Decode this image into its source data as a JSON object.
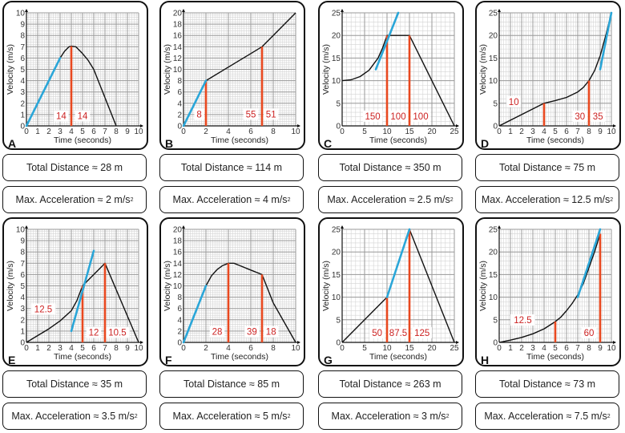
{
  "colors": {
    "curve": "#111111",
    "tangent": "#2aa6d8",
    "area_line": "#e8481f",
    "area_label": "#cc2222",
    "grid_major": "#9a9a9a",
    "grid_minor": "#d4d4d4"
  },
  "common": {
    "xlabel": "Time (seconds)",
    "ylabel": "Velocity (m/s)"
  },
  "chart_data": [
    {
      "id": "A",
      "type": "line",
      "xlabel": "Time (seconds)",
      "ylabel": "Velocity (m/s)",
      "xlim": [
        0,
        10
      ],
      "ylim": [
        0,
        10
      ],
      "xticks": [
        0,
        1,
        2,
        3,
        4,
        5,
        6,
        7,
        8,
        9,
        10
      ],
      "yticks": [
        0,
        1,
        2,
        3,
        4,
        5,
        6,
        7,
        8,
        9,
        10
      ],
      "xminor": 5,
      "yminor": 5,
      "curve": [
        [
          0,
          0
        ],
        [
          3,
          6
        ],
        [
          3.4,
          6.6
        ],
        [
          3.8,
          7
        ],
        [
          4,
          7.05
        ],
        [
          4.4,
          7
        ],
        [
          5,
          6.4
        ],
        [
          5.5,
          5.8
        ],
        [
          6,
          5
        ],
        [
          7,
          2.5
        ],
        [
          8,
          0
        ]
      ],
      "tangent": [
        [
          0,
          0
        ],
        [
          3,
          6
        ]
      ],
      "vlines": [
        4
      ],
      "area_labels": [
        {
          "text": "14",
          "x": 3.1,
          "y": 0.75
        },
        {
          "text": "14",
          "x": 5,
          "y": 0.75
        }
      ],
      "total_distance": "Total Distance ≈ 28 m",
      "max_accel_prefix": "Max. Acceleration ≈ 2 m/s",
      "max_accel_sup": "2"
    },
    {
      "id": "B",
      "type": "line",
      "xlabel": "Time (seconds)",
      "ylabel": "Velocity (m/s)",
      "xlim": [
        0,
        10
      ],
      "ylim": [
        0,
        20
      ],
      "xticks": [
        0,
        2,
        4,
        6,
        8,
        10
      ],
      "yticks": [
        0,
        2,
        4,
        6,
        8,
        10,
        12,
        14,
        16,
        18,
        20
      ],
      "xminor": 10,
      "yminor": 5,
      "curve": [
        [
          0,
          0
        ],
        [
          2,
          8
        ],
        [
          4,
          10.4
        ],
        [
          6,
          12.8
        ],
        [
          7,
          14
        ],
        [
          8,
          16
        ],
        [
          10,
          20
        ]
      ],
      "tangent": [
        [
          0,
          0
        ],
        [
          2,
          8
        ]
      ],
      "vlines": [
        2,
        7
      ],
      "area_labels": [
        {
          "text": "8",
          "x": 1.4,
          "y": 1.8
        },
        {
          "text": "55",
          "x": 6.0,
          "y": 1.8
        },
        {
          "text": "51",
          "x": 7.8,
          "y": 1.8
        }
      ],
      "total_distance": "Total Distance ≈ 114 m",
      "max_accel_prefix": "Max. Acceleration ≈ 4 m/s",
      "max_accel_sup": "2"
    },
    {
      "id": "C",
      "type": "line",
      "xlabel": "Time (seconds)",
      "ylabel": "Velocity (m/s)",
      "xlim": [
        0,
        25
      ],
      "ylim": [
        0,
        25
      ],
      "xticks": [
        0,
        5,
        10,
        15,
        20,
        25
      ],
      "yticks": [
        0,
        5,
        10,
        15,
        20,
        25
      ],
      "xminor": 5,
      "yminor": 5,
      "curve": [
        [
          0,
          10
        ],
        [
          2,
          10.2
        ],
        [
          4,
          10.9
        ],
        [
          6,
          12.3
        ],
        [
          8,
          15
        ],
        [
          9,
          17.2
        ],
        [
          10,
          20
        ],
        [
          15,
          20
        ],
        [
          25,
          0
        ]
      ],
      "tangent": [
        [
          7.5,
          12.5
        ],
        [
          12.5,
          25
        ]
      ],
      "vlines": [
        10,
        15
      ],
      "area_labels": [
        {
          "text": "150",
          "x": 6.8,
          "y": 1.8
        },
        {
          "text": "100",
          "x": 12.5,
          "y": 1.8
        },
        {
          "text": "100",
          "x": 17.5,
          "y": 1.8
        }
      ],
      "total_distance": "Total Distance ≈ 350 m",
      "max_accel_prefix": "Max. Acceleration ≈ 2.5 m/s",
      "max_accel_sup": "2"
    },
    {
      "id": "D",
      "type": "line",
      "xlabel": "Time (seconds)",
      "ylabel": "Velocity (m/s)",
      "xlim": [
        0,
        10
      ],
      "ylim": [
        0,
        25
      ],
      "xticks": [
        0,
        1,
        2,
        3,
        4,
        5,
        6,
        7,
        8,
        9,
        10
      ],
      "yticks": [
        0,
        5,
        10,
        15,
        20,
        25
      ],
      "xminor": 5,
      "yminor": 5,
      "curve": [
        [
          0,
          0
        ],
        [
          2,
          2.5
        ],
        [
          4,
          5
        ],
        [
          5,
          5.6
        ],
        [
          6,
          6.3
        ],
        [
          7,
          7.5
        ],
        [
          7.5,
          8.5
        ],
        [
          8,
          10
        ],
        [
          8.5,
          12.2
        ],
        [
          9,
          15.5
        ],
        [
          9.5,
          20
        ],
        [
          10,
          25
        ]
      ],
      "tangent": [
        [
          9,
          12.5
        ],
        [
          10,
          25
        ]
      ],
      "vlines": [
        4,
        8
      ],
      "area_labels": [
        {
          "text": "10",
          "x": 1.3,
          "y": 5
        },
        {
          "text": "30",
          "x": 7.2,
          "y": 1.8
        },
        {
          "text": "35",
          "x": 8.8,
          "y": 1.8
        }
      ],
      "total_distance": "Total Distance ≈ 75 m",
      "max_accel_prefix": "Max. Acceleration ≈ 12.5 m/s",
      "max_accel_sup": "2"
    },
    {
      "id": "E",
      "type": "line",
      "xlabel": "Time (seconds)",
      "ylabel": "Velocity (m/s)",
      "xlim": [
        0,
        10
      ],
      "ylim": [
        0,
        10
      ],
      "xticks": [
        0,
        1,
        2,
        3,
        4,
        5,
        6,
        7,
        8,
        9,
        10
      ],
      "yticks": [
        0,
        1,
        2,
        3,
        4,
        5,
        6,
        7,
        8,
        9,
        10
      ],
      "xminor": 5,
      "yminor": 5,
      "curve": [
        [
          0,
          0
        ],
        [
          1,
          0.6
        ],
        [
          2,
          1.2
        ],
        [
          3,
          1.9
        ],
        [
          4,
          2.8
        ],
        [
          4.5,
          3.7
        ],
        [
          5,
          5
        ],
        [
          6,
          6
        ],
        [
          7,
          7
        ],
        [
          10,
          0
        ]
      ],
      "tangent": [
        [
          4,
          1
        ],
        [
          6,
          8.1
        ]
      ],
      "vlines": [
        5,
        7
      ],
      "area_labels": [
        {
          "text": "12.5",
          "x": 1.5,
          "y": 2.8
        },
        {
          "text": "12",
          "x": 6,
          "y": 0.75
        },
        {
          "text": "10.5",
          "x": 8.1,
          "y": 0.75
        }
      ],
      "total_distance": "Total Distance ≈ 35 m",
      "max_accel_prefix": "Max. Acceleration ≈ 3.5 m/s",
      "max_accel_sup": "2"
    },
    {
      "id": "F",
      "type": "line",
      "xlabel": "Time (seconds)",
      "ylabel": "Velocity (m/s)",
      "xlim": [
        0,
        10
      ],
      "ylim": [
        0,
        20
      ],
      "xticks": [
        0,
        2,
        4,
        6,
        8,
        10
      ],
      "yticks": [
        0,
        2,
        4,
        6,
        8,
        10,
        12,
        14,
        16,
        18,
        20
      ],
      "xminor": 10,
      "yminor": 5,
      "curve": [
        [
          0,
          0
        ],
        [
          2,
          10
        ],
        [
          2.5,
          11.8
        ],
        [
          3,
          12.9
        ],
        [
          3.5,
          13.6
        ],
        [
          4,
          14
        ],
        [
          4.5,
          14
        ],
        [
          5,
          13.6
        ],
        [
          6,
          12.8
        ],
        [
          7,
          12
        ],
        [
          8,
          7
        ],
        [
          10,
          0
        ]
      ],
      "tangent": [
        [
          0,
          0
        ],
        [
          2,
          10
        ]
      ],
      "vlines": [
        4,
        7
      ],
      "area_labels": [
        {
          "text": "28",
          "x": 3,
          "y": 1.6
        },
        {
          "text": "39",
          "x": 6.1,
          "y": 1.6
        },
        {
          "text": "18",
          "x": 7.8,
          "y": 1.6
        }
      ],
      "total_distance": "Total Distance ≈ 85 m",
      "max_accel_prefix": "Max. Acceleration ≈ 5 m/s",
      "max_accel_sup": "2"
    },
    {
      "id": "G",
      "type": "line",
      "xlabel": "Time (seconds)",
      "ylabel": "Velocity (m/s)",
      "xlim": [
        0,
        25
      ],
      "ylim": [
        0,
        25
      ],
      "xticks": [
        0,
        5,
        10,
        15,
        20,
        25
      ],
      "yticks": [
        0,
        5,
        10,
        15,
        20,
        25
      ],
      "xminor": 5,
      "yminor": 5,
      "curve": [
        [
          0,
          0
        ],
        [
          10,
          10
        ],
        [
          15,
          25
        ],
        [
          25,
          0
        ]
      ],
      "tangent": [
        [
          10,
          10
        ],
        [
          15,
          25
        ]
      ],
      "vlines": [
        10,
        15
      ],
      "area_labels": [
        {
          "text": "50",
          "x": 7.8,
          "y": 1.8
        },
        {
          "text": "87.5",
          "x": 12.5,
          "y": 1.8
        },
        {
          "text": "125",
          "x": 17.8,
          "y": 1.8
        }
      ],
      "total_distance": "Total Distance ≈ 263 m",
      "max_accel_prefix": "Max. Acceleration ≈ 3 m/s",
      "max_accel_sup": "2"
    },
    {
      "id": "H",
      "type": "line",
      "xlabel": "Time (seconds)",
      "ylabel": "Velocity (m/s)",
      "xlim": [
        0,
        10
      ],
      "ylim": [
        0,
        25
      ],
      "xticks": [
        0,
        1,
        2,
        3,
        4,
        5,
        6,
        7,
        8,
        9,
        10
      ],
      "yticks": [
        0,
        5,
        10,
        15,
        20,
        25
      ],
      "xminor": 5,
      "yminor": 5,
      "curve": [
        [
          0,
          0
        ],
        [
          1,
          0.5
        ],
        [
          2,
          1.1
        ],
        [
          3,
          1.9
        ],
        [
          4,
          3
        ],
        [
          5,
          4.6
        ],
        [
          5.5,
          5.6
        ],
        [
          6,
          7
        ],
        [
          6.5,
          8.6
        ],
        [
          7,
          10.5
        ],
        [
          7.5,
          13
        ],
        [
          8,
          16.5
        ],
        [
          8.5,
          20
        ],
        [
          9,
          24
        ]
      ],
      "tangent": [
        [
          7,
          10
        ],
        [
          9,
          25
        ]
      ],
      "vlines": [
        5,
        9
      ],
      "area_labels": [
        {
          "text": "12.5",
          "x": 2.1,
          "y": 4.6
        },
        {
          "text": "60",
          "x": 8.0,
          "y": 1.8
        }
      ],
      "total_distance": "Total Distance ≈ 73 m",
      "max_accel_prefix": "Max. Acceleration ≈ 7.5 m/s",
      "max_accel_sup": "2"
    }
  ]
}
